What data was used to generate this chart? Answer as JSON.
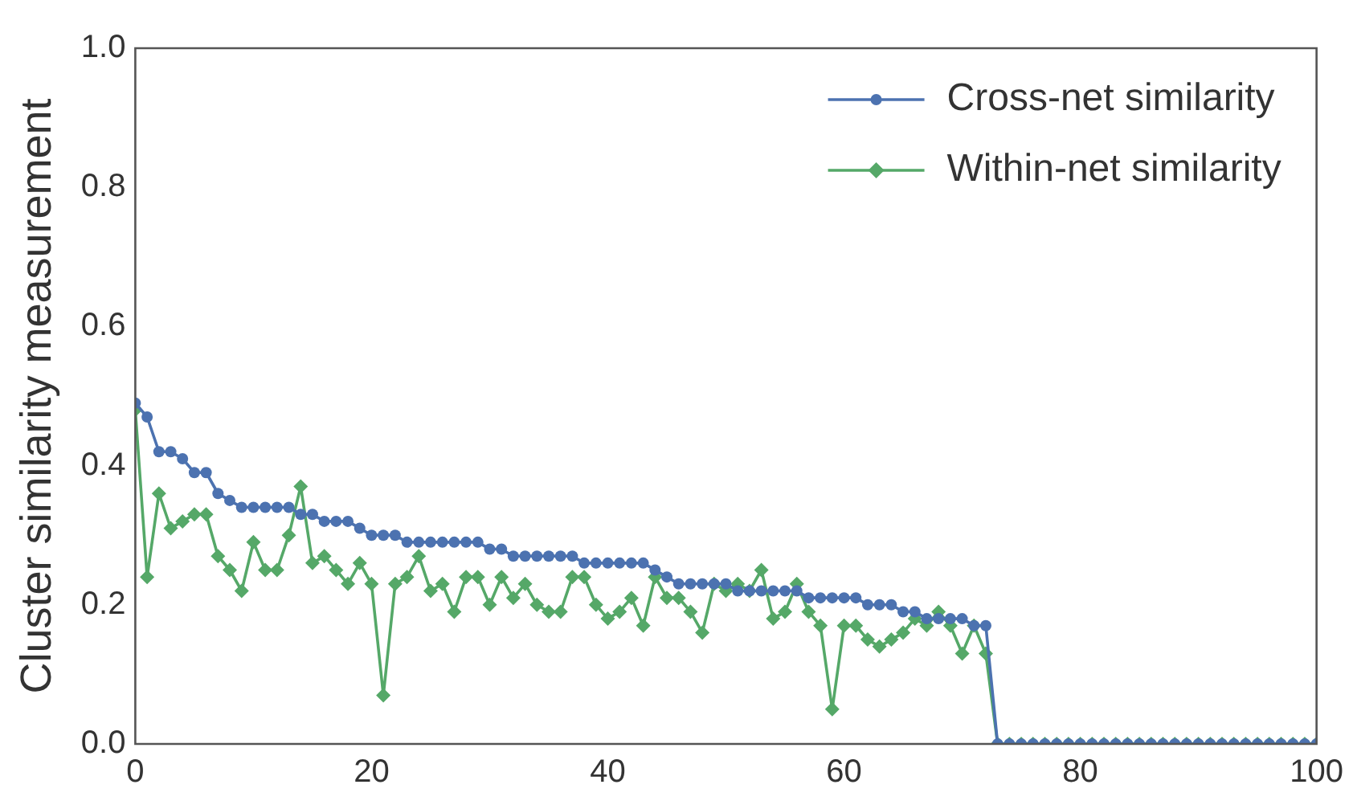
{
  "chart_data": {
    "type": "line",
    "ylabel": "Cluster similarity measurement",
    "x": [
      0,
      1,
      2,
      3,
      4,
      5,
      6,
      7,
      8,
      9,
      10,
      11,
      12,
      13,
      14,
      15,
      16,
      17,
      18,
      19,
      20,
      21,
      22,
      23,
      24,
      25,
      26,
      27,
      28,
      29,
      30,
      31,
      32,
      33,
      34,
      35,
      36,
      37,
      38,
      39,
      40,
      41,
      42,
      43,
      44,
      45,
      46,
      47,
      48,
      49,
      50,
      51,
      52,
      53,
      54,
      55,
      56,
      57,
      58,
      59,
      60,
      61,
      62,
      63,
      64,
      65,
      66,
      67,
      68,
      69,
      70,
      71,
      72,
      73,
      74,
      75,
      76,
      77,
      78,
      79,
      80,
      81,
      82,
      83,
      84,
      85,
      86,
      87,
      88,
      89,
      90,
      91,
      92,
      93,
      94,
      95,
      96,
      97,
      98,
      99,
      100
    ],
    "series": [
      {
        "name": "Cross-net similarity",
        "color": "#4c72b0",
        "marker": "circle",
        "values": [
          0.49,
          0.47,
          0.42,
          0.42,
          0.41,
          0.39,
          0.39,
          0.36,
          0.35,
          0.34,
          0.34,
          0.34,
          0.34,
          0.34,
          0.33,
          0.33,
          0.32,
          0.32,
          0.32,
          0.31,
          0.3,
          0.3,
          0.3,
          0.29,
          0.29,
          0.29,
          0.29,
          0.29,
          0.29,
          0.29,
          0.28,
          0.28,
          0.27,
          0.27,
          0.27,
          0.27,
          0.27,
          0.27,
          0.26,
          0.26,
          0.26,
          0.26,
          0.26,
          0.26,
          0.25,
          0.24,
          0.23,
          0.23,
          0.23,
          0.23,
          0.23,
          0.22,
          0.22,
          0.22,
          0.22,
          0.22,
          0.22,
          0.21,
          0.21,
          0.21,
          0.21,
          0.21,
          0.2,
          0.2,
          0.2,
          0.19,
          0.19,
          0.18,
          0.18,
          0.18,
          0.18,
          0.17,
          0.17,
          0,
          0,
          0,
          0,
          0,
          0,
          0,
          0,
          0,
          0,
          0,
          0,
          0,
          0,
          0,
          0,
          0,
          0,
          0,
          0,
          0,
          0,
          0,
          0,
          0,
          0,
          0,
          0
        ]
      },
      {
        "name": "Within-net similarity",
        "color": "#55a868",
        "marker": "diamond",
        "values": [
          0.48,
          0.24,
          0.36,
          0.31,
          0.32,
          0.33,
          0.33,
          0.27,
          0.25,
          0.22,
          0.29,
          0.25,
          0.25,
          0.3,
          0.37,
          0.26,
          0.27,
          0.25,
          0.23,
          0.26,
          0.23,
          0.07,
          0.23,
          0.24,
          0.27,
          0.22,
          0.23,
          0.19,
          0.24,
          0.24,
          0.2,
          0.24,
          0.21,
          0.23,
          0.2,
          0.19,
          0.19,
          0.24,
          0.24,
          0.2,
          0.18,
          0.19,
          0.21,
          0.17,
          0.24,
          0.21,
          0.21,
          0.19,
          0.16,
          0.23,
          0.22,
          0.23,
          0.22,
          0.25,
          0.18,
          0.19,
          0.23,
          0.19,
          0.17,
          0.05,
          0.17,
          0.17,
          0.15,
          0.14,
          0.15,
          0.16,
          0.18,
          0.17,
          0.19,
          0.17,
          0.13,
          0.17,
          0.13,
          0,
          0,
          0,
          0,
          0,
          0,
          0,
          0,
          0,
          0,
          0,
          0,
          0,
          0,
          0,
          0,
          0,
          0,
          0,
          0,
          0,
          0,
          0,
          0,
          0,
          0,
          0,
          0
        ]
      }
    ],
    "xlim": [
      0,
      100
    ],
    "xticks": [
      0,
      20,
      40,
      60,
      80,
      100
    ],
    "ylim": [
      0,
      1
    ],
    "yticks": [
      {
        "value": 0,
        "label": "0.0"
      },
      {
        "value": 0.2,
        "label": "0.2"
      },
      {
        "value": 0.4,
        "label": "0.4"
      },
      {
        "value": 0.6,
        "label": "0.6"
      },
      {
        "value": 0.8,
        "label": "0.8"
      },
      {
        "value": 1,
        "label": "1.0"
      }
    ],
    "grid": false,
    "legend": "top right",
    "line_style": "solid"
  }
}
